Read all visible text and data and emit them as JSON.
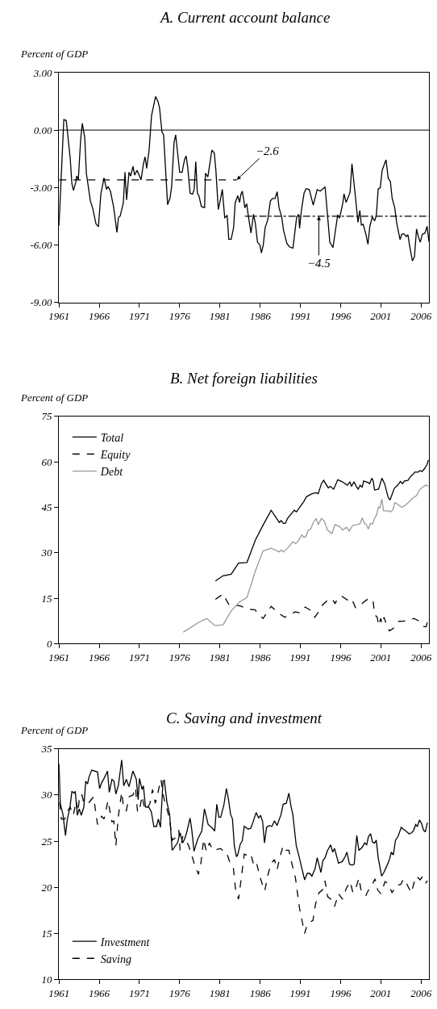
{
  "chart_data": [
    {
      "type": "line",
      "title": "A. Current account balance",
      "ylabel": "Percent of GDP",
      "xlim": [
        1961,
        2007
      ],
      "xticks": [
        1961,
        1966,
        1971,
        1976,
        1981,
        1986,
        1991,
        1996,
        2001,
        2006
      ],
      "ylim": [
        -9,
        3
      ],
      "yticks": [
        {
          "value": 3,
          "label": "3.00"
        },
        {
          "value": 0,
          "label": "0.00"
        },
        {
          "value": -3,
          "label": "-3.00"
        },
        {
          "value": -6,
          "label": "-6.00"
        },
        {
          "value": -9,
          "label": "-9.00"
        }
      ],
      "ref_lines": [
        {
          "axis": "y",
          "value": 0,
          "color": "#000000"
        }
      ],
      "annotations": [
        {
          "text": "−2.6",
          "x": 1983.1,
          "y": -2.6
        },
        {
          "text": "−4.5",
          "x": 1993.3,
          "y": -4.5
        }
      ],
      "series": [
        {
          "color": "#000000",
          "line_style": "solid",
          "x": [
            1961.0,
            1961.6,
            1961.9,
            1962.4,
            1962.6,
            1962.8,
            1963.1,
            1963.2,
            1963.4,
            1963.7,
            1963.9,
            1964.2,
            1964.4,
            1964.9,
            1965.2,
            1965.6,
            1965.9,
            1966.2,
            1966.6,
            1966.9,
            1967.1,
            1967.4,
            1967.8,
            1968.2,
            1968.4,
            1968.6,
            1969.0,
            1969.2,
            1969.4,
            1969.7,
            1969.9,
            1970.2,
            1970.4,
            1970.7,
            1971.2,
            1971.5,
            1971.7,
            1971.9,
            1972.2,
            1972.5,
            1973.0,
            1973.3,
            1973.5,
            1973.8,
            1974.0,
            1974.5,
            1974.8,
            1975.0,
            1975.3,
            1975.5,
            1976.0,
            1976.3,
            1976.6,
            1976.8,
            1977.0,
            1977.3,
            1977.6,
            1977.8,
            1978.0,
            1978.2,
            1978.4,
            1978.7,
            1979.1,
            1979.2,
            1979.5,
            1979.7,
            1980.0,
            1980.3,
            1980.5,
            1980.8,
            1981.1,
            1981.3,
            1981.6,
            1981.9,
            1982.1,
            1982.4,
            1982.7,
            1982.9,
            1983.22,
            1983.45,
            1983.61,
            1983.78,
            1983.94,
            1984.1,
            1984.33,
            1984.53,
            1984.86,
            1985.18,
            1985.41,
            1985.67,
            1985.97,
            1986.16,
            1986.39,
            1986.62,
            1986.95,
            1987.27,
            1987.54,
            1987.86,
            1988.12,
            1988.35,
            1988.68,
            1988.91,
            1989.33,
            1989.66,
            1990.08,
            1990.54,
            1990.8,
            1990.9,
            1991.13,
            1991.46,
            1991.72,
            1992.11,
            1992.6,
            1993.09,
            1993.48,
            1994.07,
            1994.24,
            1994.66,
            1995.05,
            1995.64,
            1995.87,
            1996.29,
            1996.42,
            1996.69,
            1997.18,
            1997.41,
            1997.83,
            1998.16,
            1998.39,
            1998.58,
            1998.81,
            1999.14,
            1999.4,
            1999.63,
            1999.95,
            2000.22,
            2000.44,
            2000.67,
            2000.93,
            2001.16,
            2001.52,
            2001.65,
            2001.92,
            2002.18,
            2002.41,
            2002.73,
            2002.99,
            2003.39,
            2003.61,
            2003.88,
            2004.14,
            2004.37,
            2004.59,
            2004.92,
            2005.18,
            2005.44,
            2005.67,
            2005.9,
            2006.16,
            2006.49,
            2006.75,
            2006.98
          ],
          "values": [
            -5.0,
            0.55,
            0.5,
            -1.5,
            -2.8,
            -3.15,
            -2.7,
            -2.4,
            -2.6,
            -0.45,
            0.35,
            -0.4,
            -2.25,
            -3.7,
            -4.1,
            -4.9,
            -5.05,
            -3.35,
            -2.5,
            -3.1,
            -2.95,
            -3.2,
            -4.05,
            -5.35,
            -4.55,
            -4.5,
            -3.8,
            -2.2,
            -3.65,
            -2.2,
            -2.4,
            -1.9,
            -2.35,
            -2.1,
            -2.6,
            -1.75,
            -1.4,
            -2.0,
            -1.05,
            0.75,
            1.75,
            1.5,
            1.15,
            -0.1,
            -0.25,
            -3.9,
            -3.55,
            -2.95,
            -0.65,
            -0.25,
            -2.2,
            -2.2,
            -1.55,
            -1.35,
            -1.95,
            -3.3,
            -3.35,
            -3.1,
            -1.65,
            -3.3,
            -3.45,
            -4.0,
            -4.05,
            -2.25,
            -2.45,
            -1.9,
            -1.05,
            -1.2,
            -2.1,
            -4.15,
            -3.55,
            -3.1,
            -4.6,
            -4.45,
            -5.7,
            -5.7,
            -5.1,
            -3.8,
            -3.43,
            -3.78,
            -3.36,
            -3.19,
            -3.57,
            -4.06,
            -3.85,
            -4.47,
            -5.38,
            -4.4,
            -4.89,
            -5.86,
            -6.0,
            -6.42,
            -6.0,
            -5.1,
            -4.68,
            -3.71,
            -3.57,
            -3.57,
            -3.22,
            -4.06,
            -4.54,
            -5.24,
            -5.93,
            -6.11,
            -6.17,
            -4.54,
            -4.4,
            -5.14,
            -4.19,
            -3.29,
            -3.06,
            -3.11,
            -3.92,
            -3.11,
            -3.19,
            -2.97,
            -3.78,
            -5.86,
            -6.14,
            -4.43,
            -4.61,
            -3.78,
            -3.33,
            -3.78,
            -3.25,
            -1.76,
            -3.43,
            -4.82,
            -4.19,
            -4.96,
            -4.92,
            -5.44,
            -5.97,
            -5.03,
            -4.54,
            -4.75,
            -4.47,
            -3.08,
            -3.01,
            -2.11,
            -1.69,
            -1.56,
            -2.53,
            -2.67,
            -3.57,
            -4.06,
            -4.89,
            -5.72,
            -5.44,
            -5.42,
            -5.56,
            -5.47,
            -6.07,
            -6.83,
            -6.63,
            -5.17,
            -5.58,
            -5.86,
            -5.44,
            -5.38,
            -5.03,
            -5.83
          ]
        },
        {
          "color": "#000000",
          "line_style": "dashed",
          "x": [
            1961,
            1983.1
          ],
          "values": [
            -2.6,
            -2.6
          ]
        },
        {
          "color": "#000000",
          "line_style": "dashdot",
          "x": [
            1984.1,
            2007
          ],
          "values": [
            -4.5,
            -4.5
          ]
        }
      ]
    },
    {
      "type": "line",
      "title": "B. Net foreign liabilities",
      "ylabel": "Percent of GDP",
      "xlim": [
        1961,
        2007
      ],
      "xticks": [
        1961,
        1966,
        1971,
        1976,
        1981,
        1986,
        1991,
        1996,
        2001,
        2006
      ],
      "ylim": [
        0,
        75
      ],
      "yticks": [
        0,
        15,
        30,
        45,
        60,
        75
      ],
      "legend": "top left",
      "series": [
        {
          "name": "Total",
          "color": "#000000",
          "line_style": "solid",
          "x": [
            1980.44,
            1981.39,
            1982.4,
            1983.31,
            1984.36,
            1985.41,
            1986.36,
            1987.37,
            1988.38,
            1988.62,
            1988.89,
            1989.13,
            1989.4,
            1990.24,
            1990.51,
            1991.43,
            1991.76,
            1992.44,
            1992.95,
            1993.22,
            1993.62,
            1993.89,
            1994.47,
            1994.71,
            1995.14,
            1995.65,
            1996.16,
            1996.84,
            1997.17,
            1997.34,
            1997.68,
            1997.95,
            1998.19,
            1998.43,
            1998.69,
            1998.86,
            1999.37,
            1999.61,
            1999.88,
            2000.05,
            2000.22,
            2000.72,
            2001.13,
            2001.47,
            2001.91,
            2002.14,
            2002.68,
            2003.09,
            2003.43,
            2003.7,
            2003.93,
            2004.37,
            2004.71,
            2004.95,
            2005.22,
            2005.62,
            2005.86,
            2006.13,
            2006.47,
            2006.74,
            2006.91
          ],
          "values": [
            20.7,
            22.4,
            22.9,
            26.6,
            26.8,
            34.2,
            39.1,
            44.0,
            40.0,
            40.6,
            39.7,
            39.7,
            41.3,
            44.0,
            43.5,
            46.9,
            48.5,
            49.5,
            49.8,
            49.5,
            52.8,
            53.9,
            51.4,
            51.9,
            51.0,
            54.1,
            53.5,
            52.3,
            53.4,
            51.9,
            53.4,
            51.9,
            51.0,
            52.3,
            51.6,
            53.7,
            53.2,
            52.8,
            54.6,
            53.7,
            50.7,
            51.0,
            54.6,
            52.8,
            48.3,
            47.4,
            51.3,
            52.3,
            53.5,
            52.8,
            53.7,
            53.9,
            55.2,
            55.7,
            56.6,
            56.6,
            57.1,
            56.8,
            57.9,
            59.1,
            60.6
          ]
        },
        {
          "name": "Equity",
          "color": "#000000",
          "line_style": "dashed",
          "x": [
            1980.44,
            1981.39,
            1982.13,
            1982.81,
            1983.65,
            1984.5,
            1985.34,
            1986.36,
            1987.37,
            1988.38,
            1989.06,
            1989.57,
            1990.41,
            1990.92,
            1991.59,
            1992.27,
            1992.78,
            1993.28,
            1993.79,
            1994.57,
            1994.98,
            1995.31,
            1995.65,
            1996.16,
            1996.84,
            1997.34,
            1997.85,
            1998.36,
            1998.86,
            1999.54,
            2000.05,
            2000.22,
            2000.56,
            2000.72,
            2000.99,
            2001.13,
            2001.4,
            2001.74,
            2002.07,
            2002.58,
            2003.26,
            2003.77,
            2004.44,
            2005.12,
            2005.79,
            2006.3,
            2006.64,
            2006.91
          ],
          "values": [
            14.6,
            16.4,
            12.8,
            12.9,
            12.3,
            11.4,
            11.2,
            8.3,
            12.3,
            9.9,
            8.7,
            9.6,
            10.5,
            10.1,
            12.1,
            11.0,
            8.7,
            10.5,
            12.9,
            14.7,
            14.7,
            13.2,
            15.0,
            15.6,
            14.4,
            15.0,
            11.9,
            12.3,
            13.7,
            15.0,
            14.1,
            9.6,
            8.7,
            6.0,
            8.3,
            6.5,
            8.7,
            6.0,
            4.2,
            5.1,
            7.4,
            7.4,
            7.8,
            8.3,
            7.4,
            5.6,
            5.6,
            8.5
          ]
        },
        {
          "name": "Debt",
          "color": "#999999",
          "line_style": "solid",
          "x": [
            1976.45,
            1978.41,
            1979.36,
            1980.37,
            1981.39,
            1982.4,
            1983.41,
            1984.36,
            1985.41,
            1986.36,
            1987.37,
            1988.38,
            1988.62,
            1988.89,
            1989.4,
            1990.07,
            1990.41,
            1990.75,
            1991.19,
            1991.43,
            1991.66,
            1992.0,
            1992.27,
            1992.61,
            1992.95,
            1993.22,
            1993.62,
            1993.96,
            1994.37,
            1994.91,
            1995.31,
            1995.82,
            1996.26,
            1996.74,
            1997.07,
            1997.51,
            1998.09,
            1998.43,
            1998.69,
            1998.96,
            1999.2,
            1999.44,
            1999.71,
            1999.98,
            2000.22,
            2000.45,
            2000.72,
            2000.89,
            2001.13,
            2001.33,
            2001.91,
            2002.24,
            2002.48,
            2002.75,
            2003.09,
            2003.6,
            2004.1,
            2004.51,
            2004.95,
            2005.46,
            2005.79,
            2006.3,
            2006.64,
            2006.91
          ],
          "values": [
            3.8,
            7.1,
            8.3,
            6.0,
            6.2,
            10.8,
            13.7,
            15.2,
            24.0,
            30.6,
            31.5,
            30.3,
            30.9,
            30.3,
            31.5,
            33.6,
            33.0,
            33.9,
            35.9,
            35.1,
            35.3,
            37.5,
            37.8,
            40.0,
            41.3,
            39.3,
            41.3,
            40.5,
            37.5,
            36.3,
            39.3,
            38.7,
            37.5,
            38.4,
            37.2,
            39.0,
            39.3,
            39.6,
            41.5,
            39.7,
            39.3,
            37.8,
            39.7,
            39.5,
            41.4,
            42.4,
            45.1,
            44.8,
            47.7,
            43.8,
            43.8,
            43.5,
            44.2,
            46.5,
            46.0,
            45.0,
            45.8,
            46.8,
            48.0,
            48.9,
            50.7,
            51.9,
            52.3,
            51.9
          ]
        }
      ]
    },
    {
      "type": "line",
      "title": "C. Saving and investment",
      "ylabel": "Percent of GDP",
      "xlim": [
        1961,
        2007
      ],
      "xticks": [
        1961,
        1966,
        1971,
        1976,
        1981,
        1986,
        1991,
        1996,
        2001,
        2006
      ],
      "ylim": [
        10,
        35
      ],
      "yticks": [
        10,
        15,
        20,
        25,
        30,
        35
      ],
      "legend": "bottom left",
      "series": [
        {
          "name": "Investment",
          "color": "#000000",
          "line_style": "solid",
          "x": [
            1961.0,
            1961.16,
            1961.49,
            1961.81,
            1962.04,
            1962.37,
            1962.6,
            1962.86,
            1963.02,
            1963.28,
            1963.51,
            1963.77,
            1964.09,
            1964.32,
            1964.55,
            1964.75,
            1965.07,
            1965.79,
            1966.05,
            1966.28,
            1966.6,
            1967.03,
            1967.25,
            1967.58,
            1967.84,
            1968.07,
            1968.39,
            1968.79,
            1969.05,
            1969.37,
            1969.7,
            1970.19,
            1970.61,
            1970.84,
            1971.0,
            1971.33,
            1971.49,
            1971.75,
            1972.14,
            1972.47,
            1972.79,
            1973.12,
            1973.35,
            1973.61,
            1973.93,
            1974.09,
            1974.42,
            1974.75,
            1975.07,
            1975.72,
            1976.05,
            1976.37,
            1976.6,
            1976.86,
            1977.29,
            1977.51,
            1977.78,
            1978.23,
            1978.75,
            1979.08,
            1979.54,
            1979.96,
            1980.35,
            1980.61,
            1980.87,
            1981.1,
            1981.49,
            1981.81,
            1982.07,
            1982.33,
            1982.56,
            1982.79,
            1983.05,
            1983.21,
            1983.54,
            1983.77,
            1984.03,
            1984.52,
            1984.84,
            1985.17,
            1985.5,
            1985.82,
            1986.05,
            1986.31,
            1986.54,
            1986.8,
            1987.13,
            1987.46,
            1987.78,
            1988.11,
            1988.6,
            1988.86,
            1989.25,
            1989.57,
            1989.83,
            1990.06,
            1990.49,
            1990.88,
            1991.2,
            1991.53,
            1991.86,
            1992.17,
            1992.43,
            1992.83,
            1993.09,
            1993.55,
            1993.8,
            1994.06,
            1994.38,
            1994.77,
            1995.02,
            1995.25,
            1995.74,
            1996.23,
            1996.55,
            1996.78,
            1997.1,
            1997.43,
            1997.69,
            1998.01,
            1998.27,
            1998.66,
            1998.99,
            1999.24,
            1999.47,
            1999.73,
            1999.96,
            2000.22,
            2000.44,
            2000.67,
            2001.1,
            2001.32,
            2001.74,
            2002.07,
            2002.3,
            2002.56,
            2002.82,
            2003.14,
            2003.54,
            2003.8,
            2004.12,
            2004.51,
            2004.84,
            2005.1,
            2005.33,
            2005.55,
            2005.81,
            2006.07,
            2006.3,
            2006.53,
            2006.79
          ],
          "values": [
            33.4,
            29.1,
            27.9,
            25.6,
            27.4,
            28.7,
            30.4,
            30.2,
            30.4,
            27.8,
            28.5,
            27.8,
            28.7,
            31.5,
            31.2,
            32.0,
            32.7,
            32.5,
            30.7,
            31.3,
            31.8,
            32.6,
            30.3,
            31.7,
            31.5,
            30.1,
            31.1,
            33.8,
            31.0,
            31.7,
            30.9,
            32.6,
            31.7,
            29.5,
            31.8,
            30.6,
            31.0,
            28.7,
            28.7,
            28.2,
            26.6,
            26.6,
            27.4,
            26.5,
            31.5,
            31.6,
            29.2,
            27.9,
            24.0,
            24.8,
            25.9,
            24.8,
            25.2,
            25.9,
            27.5,
            26.2,
            23.9,
            25.2,
            26.1,
            28.5,
            26.8,
            26.5,
            26.1,
            29.0,
            27.6,
            27.6,
            28.9,
            30.7,
            29.5,
            27.9,
            27.4,
            24.5,
            23.3,
            23.5,
            24.7,
            25.0,
            26.6,
            26.3,
            26.4,
            27.2,
            28.1,
            27.5,
            27.8,
            27.1,
            24.8,
            26.5,
            26.7,
            26.6,
            27.2,
            26.7,
            27.9,
            29.0,
            29.1,
            30.2,
            28.8,
            27.9,
            24.5,
            23.2,
            22.0,
            20.8,
            21.5,
            21.5,
            21.2,
            22.0,
            23.2,
            21.6,
            22.9,
            23.2,
            24.0,
            24.6,
            23.8,
            24.2,
            22.6,
            22.8,
            23.3,
            23.8,
            22.5,
            22.4,
            22.5,
            25.6,
            24.0,
            24.3,
            24.8,
            24.6,
            25.5,
            25.8,
            24.9,
            24.8,
            25.1,
            23.2,
            21.2,
            21.5,
            22.3,
            23.0,
            23.8,
            23.5,
            25.1,
            25.5,
            26.5,
            26.3,
            26.1,
            25.8,
            25.9,
            26.2,
            26.8,
            26.6,
            27.3,
            26.9,
            26.2,
            26.0,
            27.0
          ]
        },
        {
          "name": "Saving",
          "color": "#000000",
          "line_style": "dashed",
          "x": [
            1961.07,
            1961.29,
            1961.72,
            1962.04,
            1962.37,
            1962.79,
            1963.12,
            1963.35,
            1963.57,
            1963.83,
            1964.09,
            1964.65,
            1965.3,
            1965.79,
            1966.28,
            1966.6,
            1967.09,
            1967.58,
            1967.81,
            1968.07,
            1968.39,
            1968.79,
            1969.05,
            1969.37,
            1969.7,
            1970.19,
            1970.51,
            1970.77,
            1971.07,
            1971.33,
            1971.66,
            1971.98,
            1972.3,
            1972.63,
            1972.96,
            1973.28,
            1973.67,
            1974.0,
            1974.32,
            1974.75,
            1975.07,
            1975.4,
            1975.89,
            1976.05,
            1976.37,
            1976.7,
            1977.12,
            1977.84,
            1978.33,
            1978.65,
            1978.98,
            1979.31,
            1979.7,
            1980.12,
            1980.61,
            1981.1,
            1981.59,
            1981.81,
            1982.24,
            1982.66,
            1982.95,
            1983.32,
            1983.64,
            1984.03,
            1984.43,
            1984.84,
            1985.27,
            1985.59,
            1985.92,
            1986.24,
            1986.57,
            1986.96,
            1987.35,
            1987.78,
            1988.11,
            1988.44,
            1988.86,
            1989.25,
            1989.57,
            1989.96,
            1990.39,
            1990.88,
            1991.53,
            1991.86,
            1992.17,
            1992.56,
            1992.89,
            1993.32,
            1993.74,
            1994.06,
            1994.38,
            1994.77,
            1995.25,
            1995.74,
            1996.23,
            1996.72,
            1997.2,
            1997.53,
            1998.01,
            1998.27,
            1998.6,
            1999.15,
            1999.47,
            1999.89,
            2000.28,
            2000.61,
            2001.0,
            2001.52,
            2001.92,
            2002.4,
            2002.89,
            2003.48,
            2003.8,
            2004.19,
            2004.78,
            2005.17,
            2005.43,
            2005.88,
            2006.14,
            2006.53,
            2006.79
          ],
          "values": [
            29.2,
            27.4,
            27.4,
            28.2,
            28.7,
            27.8,
            29.4,
            28.2,
            29.9,
            30.1,
            29.1,
            29.1,
            29.8,
            26.8,
            27.7,
            27.4,
            29.4,
            27.1,
            27.2,
            24.5,
            27.8,
            30.3,
            28.5,
            28.3,
            29.8,
            30.0,
            30.8,
            28.1,
            28.7,
            29.9,
            28.4,
            28.6,
            29.1,
            30.6,
            29.1,
            30.2,
            31.7,
            29.8,
            28.8,
            27.4,
            25.1,
            25.3,
            26.2,
            24.0,
            25.5,
            25.2,
            24.5,
            22.5,
            21.4,
            22.7,
            25.2,
            23.9,
            24.8,
            24.0,
            24.1,
            24.2,
            23.8,
            23.8,
            22.7,
            22.2,
            19.7,
            18.7,
            20.9,
            23.6,
            23.4,
            23.6,
            22.2,
            22.5,
            21.3,
            20.4,
            19.6,
            21.3,
            22.6,
            23.0,
            21.9,
            23.2,
            24.5,
            24.0,
            24.0,
            22.5,
            21.0,
            17.8,
            15.0,
            16.0,
            16.2,
            16.4,
            18.2,
            19.4,
            19.7,
            20.7,
            19.0,
            18.7,
            17.9,
            19.3,
            18.7,
            19.9,
            20.6,
            19.4,
            20.2,
            21.0,
            19.4,
            19.1,
            19.7,
            20.2,
            20.9,
            19.7,
            19.3,
            20.6,
            20.4,
            19.4,
            20.2,
            20.3,
            20.9,
            20.4,
            19.4,
            20.6,
            21.2,
            20.8,
            21.1,
            20.4,
            20.7
          ]
        }
      ]
    }
  ]
}
